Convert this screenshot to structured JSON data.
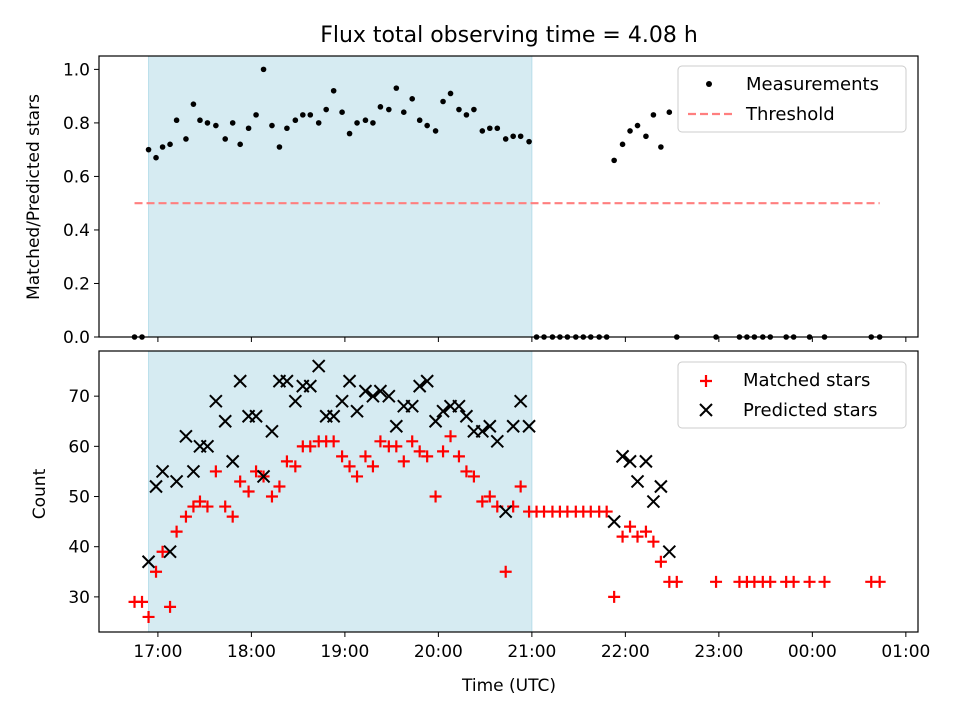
{
  "title": "Flux total observing time = 4.08 h",
  "chart_data": [
    {
      "type": "scatter",
      "ylabel": "Matched/Predicted stars",
      "xlabel": "",
      "ylim": [
        0,
        1.05
      ],
      "yticks": [
        "0.0",
        "0.2",
        "0.4",
        "0.6",
        "0.8",
        "1.0"
      ],
      "ytick_values": [
        0,
        0.2,
        0.4,
        0.6,
        0.8,
        1.0
      ],
      "x_unit": "hours after 00:00 UTC on the first day (e.g. 16.75 = 16:45; values > 24 are past midnight)",
      "highlight_span": [
        16.9,
        21.0
      ],
      "legend_position": "top-right",
      "series": [
        {
          "name": "Measurements",
          "marker": "dot",
          "color": "#000000",
          "points": [
            [
              16.75,
              0.0
            ],
            [
              16.83,
              0.0
            ],
            [
              16.9,
              0.7
            ],
            [
              16.98,
              0.67
            ],
            [
              17.05,
              0.71
            ],
            [
              17.13,
              0.72
            ],
            [
              17.2,
              0.81
            ],
            [
              17.3,
              0.74
            ],
            [
              17.38,
              0.87
            ],
            [
              17.45,
              0.81
            ],
            [
              17.53,
              0.8
            ],
            [
              17.62,
              0.79
            ],
            [
              17.72,
              0.74
            ],
            [
              17.8,
              0.8
            ],
            [
              17.88,
              0.72
            ],
            [
              17.97,
              0.78
            ],
            [
              18.05,
              0.83
            ],
            [
              18.13,
              1.0
            ],
            [
              18.22,
              0.79
            ],
            [
              18.3,
              0.71
            ],
            [
              18.38,
              0.78
            ],
            [
              18.47,
              0.81
            ],
            [
              18.55,
              0.83
            ],
            [
              18.63,
              0.83
            ],
            [
              18.72,
              0.8
            ],
            [
              18.8,
              0.85
            ],
            [
              18.88,
              0.92
            ],
            [
              18.97,
              0.84
            ],
            [
              19.05,
              0.76
            ],
            [
              19.13,
              0.8
            ],
            [
              19.22,
              0.81
            ],
            [
              19.3,
              0.8
            ],
            [
              19.38,
              0.86
            ],
            [
              19.47,
              0.85
            ],
            [
              19.55,
              0.93
            ],
            [
              19.63,
              0.84
            ],
            [
              19.72,
              0.89
            ],
            [
              19.8,
              0.81
            ],
            [
              19.88,
              0.79
            ],
            [
              19.97,
              0.77
            ],
            [
              20.05,
              0.88
            ],
            [
              20.13,
              0.91
            ],
            [
              20.22,
              0.85
            ],
            [
              20.3,
              0.83
            ],
            [
              20.38,
              0.85
            ],
            [
              20.47,
              0.77
            ],
            [
              20.55,
              0.78
            ],
            [
              20.63,
              0.78
            ],
            [
              20.72,
              0.74
            ],
            [
              20.8,
              0.75
            ],
            [
              20.88,
              0.75
            ],
            [
              20.97,
              0.73
            ],
            [
              21.05,
              0.0
            ],
            [
              21.13,
              0.0
            ],
            [
              21.22,
              0.0
            ],
            [
              21.3,
              0.0
            ],
            [
              21.38,
              0.0
            ],
            [
              21.47,
              0.0
            ],
            [
              21.55,
              0.0
            ],
            [
              21.63,
              0.0
            ],
            [
              21.72,
              0.0
            ],
            [
              21.8,
              0.0
            ],
            [
              21.88,
              0.66
            ],
            [
              21.97,
              0.72
            ],
            [
              22.05,
              0.77
            ],
            [
              22.13,
              0.79
            ],
            [
              22.22,
              0.75
            ],
            [
              22.3,
              0.83
            ],
            [
              22.38,
              0.71
            ],
            [
              22.47,
              0.84
            ],
            [
              22.55,
              0.0
            ],
            [
              22.97,
              0.0
            ],
            [
              23.22,
              0.0
            ],
            [
              23.3,
              0.0
            ],
            [
              23.38,
              0.0
            ],
            [
              23.47,
              0.0
            ],
            [
              23.55,
              0.0
            ],
            [
              23.72,
              0.0
            ],
            [
              23.8,
              0.0
            ],
            [
              23.97,
              0.0
            ],
            [
              24.13,
              0.0
            ],
            [
              24.63,
              0.0
            ],
            [
              24.72,
              0.0
            ]
          ]
        },
        {
          "name": "Threshold",
          "marker": "dashed-line",
          "color": "#ff7f7f",
          "points": [
            [
              16.75,
              0.5
            ],
            [
              24.72,
              0.5
            ]
          ]
        }
      ]
    },
    {
      "type": "scatter",
      "ylabel": "Count",
      "xlabel": "Time (UTC)",
      "ylim": [
        23,
        79
      ],
      "yticks": [
        "30",
        "40",
        "50",
        "60",
        "70"
      ],
      "ytick_values": [
        30,
        40,
        50,
        60,
        70
      ],
      "xlim": [
        16.37,
        25.13
      ],
      "xticks": [
        "17:00",
        "18:00",
        "19:00",
        "20:00",
        "21:00",
        "22:00",
        "23:00",
        "00:00",
        "01:00"
      ],
      "xtick_values": [
        17,
        18,
        19,
        20,
        21,
        22,
        23,
        24,
        25
      ],
      "highlight_span": [
        16.9,
        21.0
      ],
      "legend_position": "top-right",
      "series": [
        {
          "name": "Matched stars",
          "marker": "plus",
          "color": "#ff0000",
          "points": [
            [
              16.75,
              29
            ],
            [
              16.83,
              29
            ],
            [
              16.9,
              26
            ],
            [
              16.98,
              35
            ],
            [
              17.05,
              39
            ],
            [
              17.13,
              28
            ],
            [
              17.2,
              43
            ],
            [
              17.3,
              46
            ],
            [
              17.38,
              48
            ],
            [
              17.45,
              49
            ],
            [
              17.53,
              48
            ],
            [
              17.62,
              55
            ],
            [
              17.72,
              48
            ],
            [
              17.8,
              46
            ],
            [
              17.88,
              53
            ],
            [
              17.97,
              51
            ],
            [
              18.05,
              55
            ],
            [
              18.13,
              54
            ],
            [
              18.22,
              50
            ],
            [
              18.3,
              52
            ],
            [
              18.38,
              57
            ],
            [
              18.47,
              56
            ],
            [
              18.55,
              60
            ],
            [
              18.63,
              60
            ],
            [
              18.72,
              61
            ],
            [
              18.8,
              61
            ],
            [
              18.88,
              61
            ],
            [
              18.97,
              58
            ],
            [
              19.05,
              56
            ],
            [
              19.13,
              54
            ],
            [
              19.22,
              58
            ],
            [
              19.3,
              56
            ],
            [
              19.38,
              61
            ],
            [
              19.47,
              60
            ],
            [
              19.55,
              60
            ],
            [
              19.63,
              57
            ],
            [
              19.72,
              61
            ],
            [
              19.8,
              59
            ],
            [
              19.88,
              58
            ],
            [
              19.97,
              50
            ],
            [
              20.05,
              59
            ],
            [
              20.13,
              62
            ],
            [
              20.22,
              58
            ],
            [
              20.3,
              55
            ],
            [
              20.38,
              54
            ],
            [
              20.47,
              49
            ],
            [
              20.55,
              50
            ],
            [
              20.63,
              48
            ],
            [
              20.72,
              35
            ],
            [
              20.8,
              48
            ],
            [
              20.88,
              52
            ],
            [
              20.97,
              47
            ],
            [
              21.05,
              47
            ],
            [
              21.13,
              47
            ],
            [
              21.22,
              47
            ],
            [
              21.3,
              47
            ],
            [
              21.38,
              47
            ],
            [
              21.47,
              47
            ],
            [
              21.55,
              47
            ],
            [
              21.63,
              47
            ],
            [
              21.72,
              47
            ],
            [
              21.8,
              47
            ],
            [
              21.88,
              30
            ],
            [
              21.97,
              42
            ],
            [
              22.05,
              44
            ],
            [
              22.13,
              42
            ],
            [
              22.22,
              43
            ],
            [
              22.3,
              41
            ],
            [
              22.38,
              37
            ],
            [
              22.47,
              33
            ],
            [
              22.55,
              33
            ],
            [
              22.97,
              33
            ],
            [
              23.22,
              33
            ],
            [
              23.3,
              33
            ],
            [
              23.38,
              33
            ],
            [
              23.47,
              33
            ],
            [
              23.55,
              33
            ],
            [
              23.72,
              33
            ],
            [
              23.8,
              33
            ],
            [
              23.97,
              33
            ],
            [
              24.13,
              33
            ],
            [
              24.63,
              33
            ],
            [
              24.72,
              33
            ]
          ]
        },
        {
          "name": "Predicted stars",
          "marker": "x",
          "color": "#000000",
          "points": [
            [
              16.9,
              37
            ],
            [
              16.98,
              52
            ],
            [
              17.05,
              55
            ],
            [
              17.13,
              39
            ],
            [
              17.2,
              53
            ],
            [
              17.3,
              62
            ],
            [
              17.38,
              55
            ],
            [
              17.45,
              60
            ],
            [
              17.53,
              60
            ],
            [
              17.62,
              69
            ],
            [
              17.72,
              65
            ],
            [
              17.8,
              57
            ],
            [
              17.88,
              73
            ],
            [
              17.97,
              66
            ],
            [
              18.05,
              66
            ],
            [
              18.13,
              54
            ],
            [
              18.22,
              63
            ],
            [
              18.3,
              73
            ],
            [
              18.38,
              73
            ],
            [
              18.47,
              69
            ],
            [
              18.55,
              72
            ],
            [
              18.63,
              72
            ],
            [
              18.72,
              76
            ],
            [
              18.8,
              66
            ],
            [
              18.88,
              66
            ],
            [
              18.97,
              69
            ],
            [
              19.05,
              73
            ],
            [
              19.13,
              67
            ],
            [
              19.22,
              71
            ],
            [
              19.3,
              70
            ],
            [
              19.38,
              71
            ],
            [
              19.47,
              70
            ],
            [
              19.55,
              64
            ],
            [
              19.63,
              68
            ],
            [
              19.72,
              68
            ],
            [
              19.8,
              72
            ],
            [
              19.88,
              73
            ],
            [
              19.97,
              65
            ],
            [
              20.05,
              67
            ],
            [
              20.13,
              68
            ],
            [
              20.22,
              68
            ],
            [
              20.3,
              66
            ],
            [
              20.38,
              63
            ],
            [
              20.47,
              63
            ],
            [
              20.55,
              64
            ],
            [
              20.63,
              61
            ],
            [
              20.72,
              47
            ],
            [
              20.8,
              64
            ],
            [
              20.88,
              69
            ],
            [
              20.97,
              64
            ],
            [
              21.88,
              45
            ],
            [
              21.97,
              58
            ],
            [
              22.05,
              57
            ],
            [
              22.13,
              53
            ],
            [
              22.22,
              57
            ],
            [
              22.3,
              49
            ],
            [
              22.38,
              52
            ],
            [
              22.47,
              39
            ]
          ]
        }
      ]
    }
  ]
}
